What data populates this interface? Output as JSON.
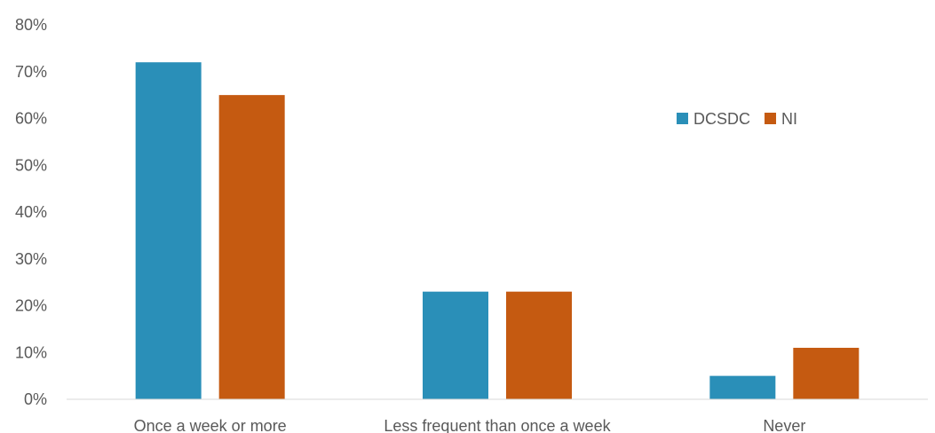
{
  "chart_data": {
    "type": "bar",
    "categories": [
      "Once a week or more",
      "Less frequent than once a week",
      "Never"
    ],
    "series": [
      {
        "name": "DCSDC",
        "values": [
          72,
          23,
          5
        ],
        "color": "#2a8fb8"
      },
      {
        "name": "NI",
        "values": [
          65,
          23,
          11
        ],
        "color": "#c55a11"
      }
    ],
    "ylim": [
      0,
      80
    ],
    "yticks": [
      0,
      10,
      20,
      30,
      40,
      50,
      60,
      70,
      80
    ],
    "ytick_labels": [
      "0%",
      "10%",
      "20%",
      "30%",
      "40%",
      "50%",
      "60%",
      "70%",
      "80%"
    ],
    "axis_color": "#d9d9d9",
    "grid": false,
    "legend": {
      "placement": "top-right"
    },
    "title": "",
    "xlabel": "",
    "ylabel": ""
  }
}
